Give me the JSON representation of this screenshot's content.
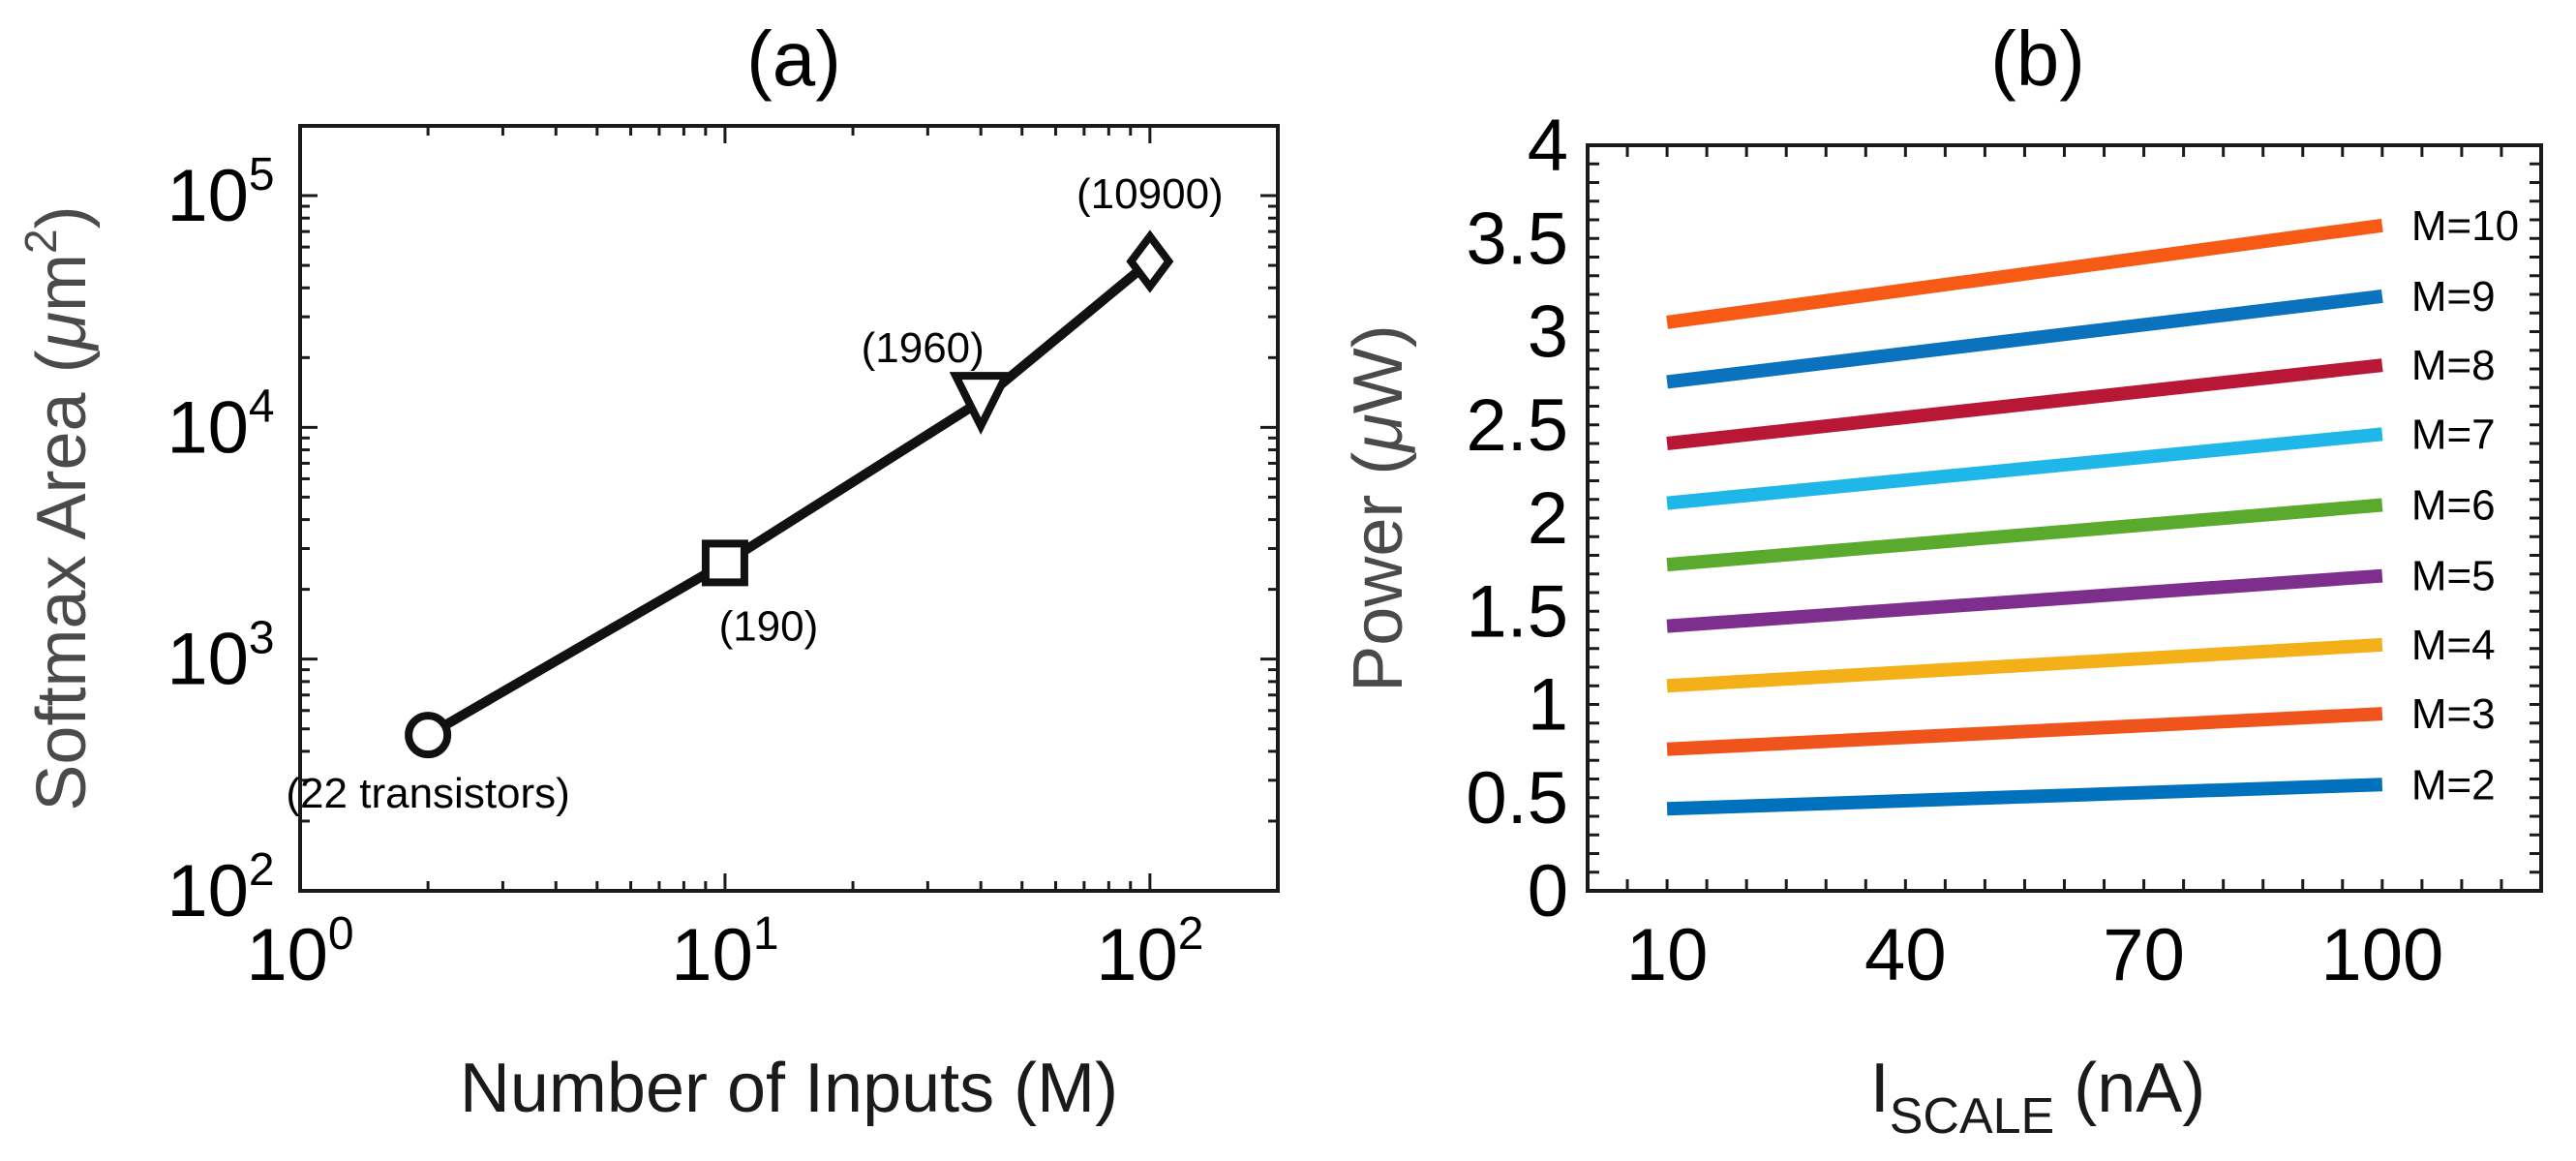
{
  "chart_data": [
    {
      "type": "line",
      "panel_label": "(a)",
      "xscale": "log",
      "yscale": "log",
      "xlim": [
        1,
        200
      ],
      "ylim": [
        100,
        200000
      ],
      "xlabel": "Number of Inputs (M)",
      "ylabel": {
        "prefix": "Softmax Area (",
        "mu": "μ",
        "unit": "m",
        "sup": "2",
        "suffix": ")"
      },
      "xticks": [
        {
          "base": "10",
          "exp": "0",
          "value": 1
        },
        {
          "base": "10",
          "exp": "1",
          "value": 10
        },
        {
          "base": "10",
          "exp": "2",
          "value": 100
        }
      ],
      "yticks": [
        {
          "base": "10",
          "exp": "2",
          "value": 100
        },
        {
          "base": "10",
          "exp": "3",
          "value": 1000
        },
        {
          "base": "10",
          "exp": "4",
          "value": 10000
        },
        {
          "base": "10",
          "exp": "5",
          "value": 100000
        }
      ],
      "series": [
        {
          "name": "Softmax Area",
          "color": "#111111",
          "points": [
            {
              "x": 2,
              "y": 470,
              "marker": "circle",
              "label": "(22 transistors)"
            },
            {
              "x": 10,
              "y": 2600,
              "marker": "square",
              "label": "(190)"
            },
            {
              "x": 40,
              "y": 13000,
              "marker": "triangle-down",
              "label": "(1960)"
            },
            {
              "x": 100,
              "y": 52000,
              "marker": "diamond",
              "label": "(10900)"
            }
          ]
        }
      ]
    },
    {
      "type": "line",
      "panel_label": "(b)",
      "xlim": [
        0,
        120
      ],
      "ylim": [
        0,
        4
      ],
      "xlabel": {
        "main": "I",
        "sub": "SCALE",
        "unit": " (nA)"
      },
      "ylabel": {
        "prefix": "Power (",
        "mu": "μ",
        "unit": "W",
        "suffix": ")"
      },
      "xticks": [
        "10",
        "40",
        "70",
        "100"
      ],
      "yticks": [
        "0",
        "0.5",
        "1",
        "1.5",
        "2",
        "2.5",
        "3",
        "3.5",
        "4"
      ],
      "x": [
        10,
        100
      ],
      "series": [
        {
          "name": "M=2",
          "color": "#0072BD",
          "values": [
            0.44,
            0.57
          ]
        },
        {
          "name": "M=3",
          "color": "#F0541D",
          "values": [
            0.76,
            0.95
          ]
        },
        {
          "name": "M=4",
          "color": "#F4B018",
          "values": [
            1.1,
            1.32
          ]
        },
        {
          "name": "M=5",
          "color": "#7E2F8E",
          "values": [
            1.42,
            1.69
          ]
        },
        {
          "name": "M=6",
          "color": "#5AAA2E",
          "values": [
            1.75,
            2.07
          ]
        },
        {
          "name": "M=7",
          "color": "#1FB7E8",
          "values": [
            2.08,
            2.45
          ]
        },
        {
          "name": "M=8",
          "color": "#B81735",
          "values": [
            2.4,
            2.82
          ]
        },
        {
          "name": "M=9",
          "color": "#0B72BD",
          "values": [
            2.73,
            3.19
          ]
        },
        {
          "name": "M=10",
          "color": "#F65A14",
          "values": [
            3.05,
            3.57
          ]
        }
      ]
    }
  ]
}
